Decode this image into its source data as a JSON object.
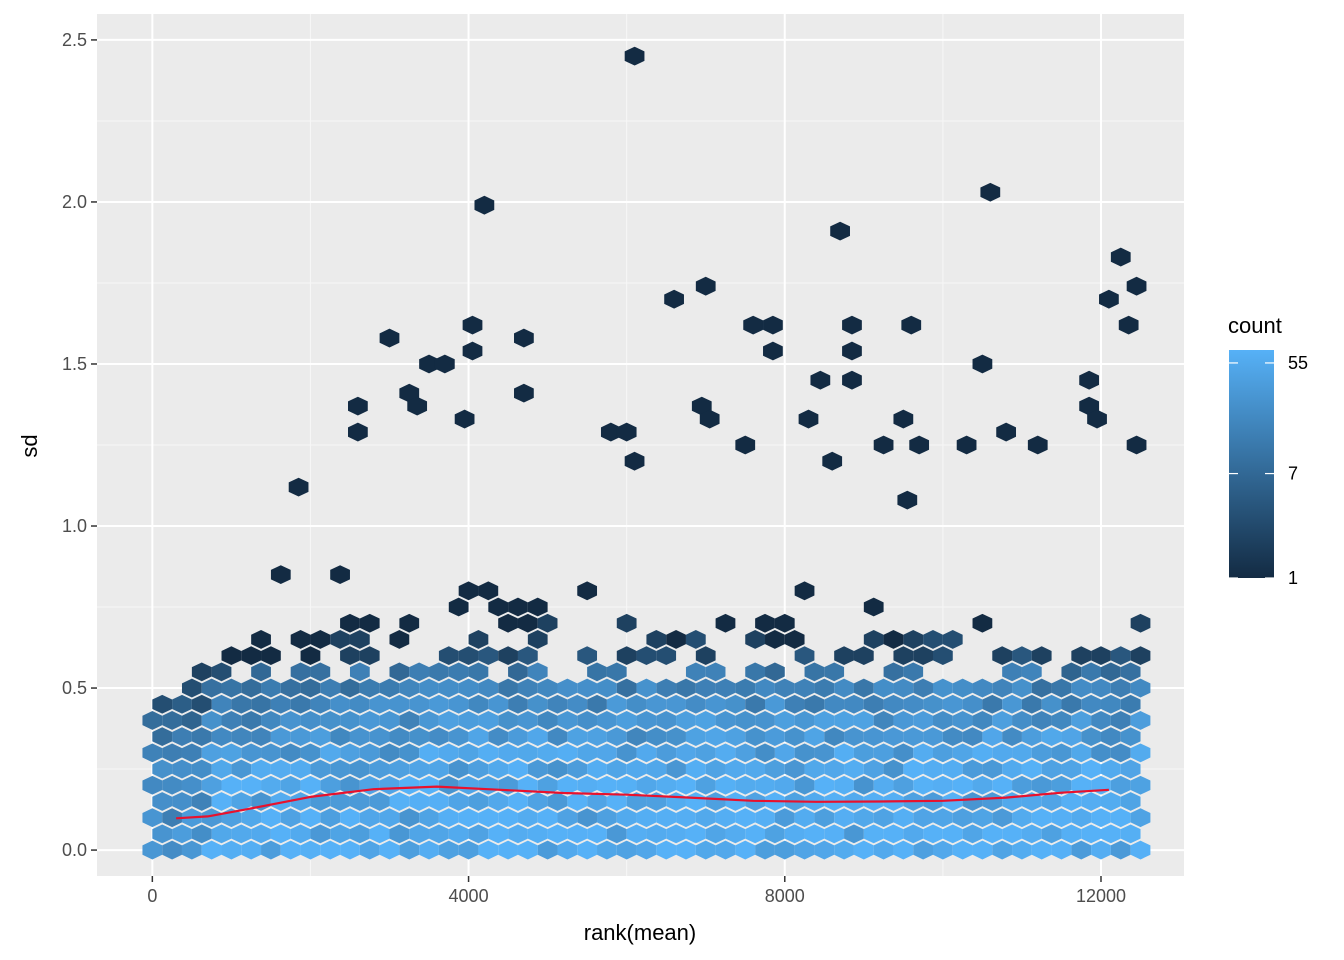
{
  "chart_data": {
    "type": "hexbin",
    "xlabel": "rank(mean)",
    "ylabel": "sd",
    "xlim": [
      -700,
      13050
    ],
    "ylim": [
      -0.08,
      2.58
    ],
    "x_ticks": [
      0,
      4000,
      8000,
      12000
    ],
    "x_tick_labels": [
      "0",
      "4000",
      "8000",
      "12000"
    ],
    "y_ticks": [
      0.0,
      0.5,
      1.0,
      1.5,
      2.0,
      2.5
    ],
    "y_tick_labels": [
      "0.0",
      "0.5",
      "1.0",
      "1.5",
      "2.0",
      "2.5"
    ],
    "grid": true,
    "panel_background": "#ebebeb",
    "legend": {
      "title": "count",
      "position": "right",
      "scale": "log",
      "breaks": [
        55,
        7,
        1
      ],
      "break_labels": [
        "55",
        "7",
        "1"
      ],
      "low_color": "#132b43",
      "high_color": "#56b1f7",
      "max_count": 70
    },
    "hexbins": {
      "x_spacing": 250,
      "y_spacing": 0.05,
      "x_range": [
        0,
        12500
      ],
      "dense_band": {
        "sd_center": 0.12,
        "counts_near_center": 55
      },
      "outliers": [
        {
          "x": 6100,
          "y": 2.45
        },
        {
          "x": 4200,
          "y": 1.99
        },
        {
          "x": 10600,
          "y": 2.03
        },
        {
          "x": 8700,
          "y": 1.91
        },
        {
          "x": 12250,
          "y": 1.83
        },
        {
          "x": 12100,
          "y": 1.7
        },
        {
          "x": 12450,
          "y": 1.74
        },
        {
          "x": 12350,
          "y": 1.62
        },
        {
          "x": 7000,
          "y": 1.74
        },
        {
          "x": 6600,
          "y": 1.7
        },
        {
          "x": 3000,
          "y": 1.58
        },
        {
          "x": 4050,
          "y": 1.62
        },
        {
          "x": 4050,
          "y": 1.54
        },
        {
          "x": 4700,
          "y": 1.58
        },
        {
          "x": 7600,
          "y": 1.62
        },
        {
          "x": 7850,
          "y": 1.62
        },
        {
          "x": 7850,
          "y": 1.54
        },
        {
          "x": 8850,
          "y": 1.62
        },
        {
          "x": 8850,
          "y": 1.54
        },
        {
          "x": 9600,
          "y": 1.62
        },
        {
          "x": 10500,
          "y": 1.5
        },
        {
          "x": 3500,
          "y": 1.5
        },
        {
          "x": 3700,
          "y": 1.5
        },
        {
          "x": 3250,
          "y": 1.41
        },
        {
          "x": 3350,
          "y": 1.37
        },
        {
          "x": 4700,
          "y": 1.41
        },
        {
          "x": 2600,
          "y": 1.37
        },
        {
          "x": 3950,
          "y": 1.33
        },
        {
          "x": 6950,
          "y": 1.37
        },
        {
          "x": 7050,
          "y": 1.33
        },
        {
          "x": 8300,
          "y": 1.33
        },
        {
          "x": 8850,
          "y": 1.45
        },
        {
          "x": 8450,
          "y": 1.45
        },
        {
          "x": 9500,
          "y": 1.33
        },
        {
          "x": 11850,
          "y": 1.45
        },
        {
          "x": 11850,
          "y": 1.37
        },
        {
          "x": 11950,
          "y": 1.33
        },
        {
          "x": 2600,
          "y": 1.29
        },
        {
          "x": 5800,
          "y": 1.29
        },
        {
          "x": 6000,
          "y": 1.29
        },
        {
          "x": 7500,
          "y": 1.25
        },
        {
          "x": 9250,
          "y": 1.25
        },
        {
          "x": 9700,
          "y": 1.25
        },
        {
          "x": 10300,
          "y": 1.25
        },
        {
          "x": 10800,
          "y": 1.29
        },
        {
          "x": 11200,
          "y": 1.25
        },
        {
          "x": 12450,
          "y": 1.25
        },
        {
          "x": 1850,
          "y": 1.12
        },
        {
          "x": 9550,
          "y": 1.08
        },
        {
          "x": 6100,
          "y": 1.2
        },
        {
          "x": 8600,
          "y": 1.2
        }
      ]
    }
  }
}
